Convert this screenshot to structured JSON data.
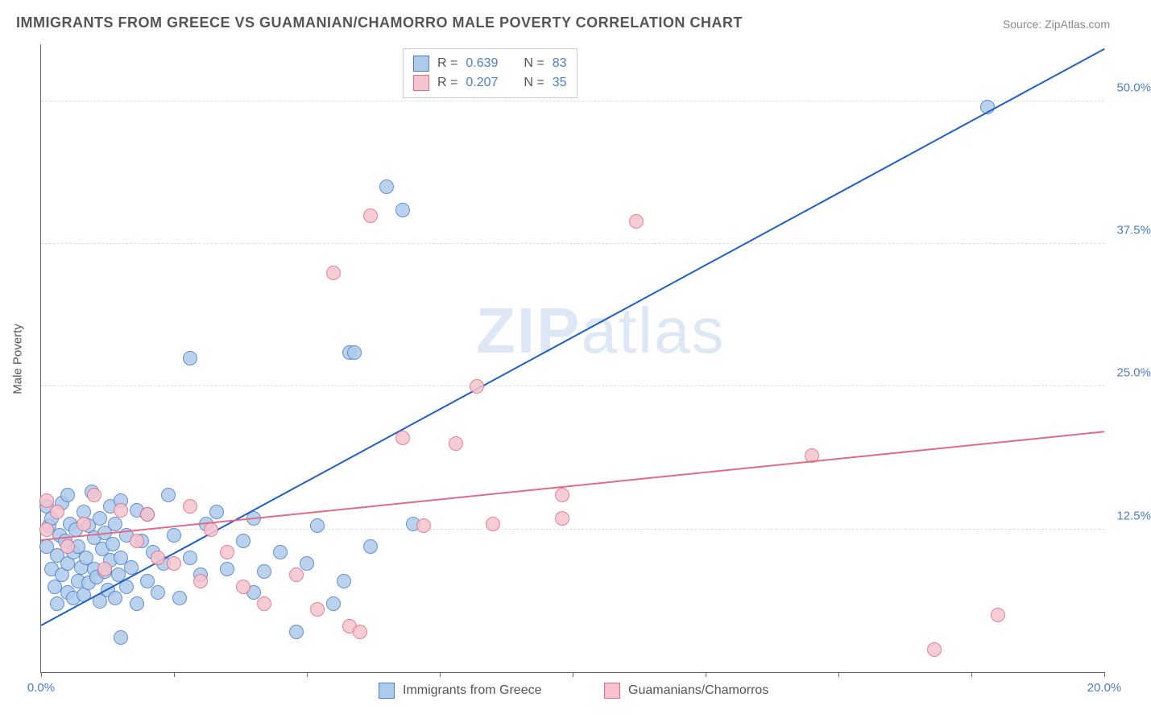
{
  "title": "IMMIGRANTS FROM GREECE VS GUAMANIAN/CHAMORRO MALE POVERTY CORRELATION CHART",
  "source": "Source: ZipAtlas.com",
  "ylabel": "Male Poverty",
  "watermark_a": "ZIP",
  "watermark_b": "atlas",
  "chart": {
    "type": "scatter",
    "xlim": [
      0,
      20
    ],
    "ylim": [
      0,
      55
    ],
    "xtick_positions": [
      0,
      2.5,
      5,
      7.5,
      10,
      12.5,
      15,
      17.5,
      20
    ],
    "xtick_labels": {
      "0": "0.0%",
      "20": "20.0%"
    },
    "ytick_positions": [
      12.5,
      25.0,
      37.5,
      50.0
    ],
    "ytick_labels": [
      "12.5%",
      "25.0%",
      "37.5%",
      "50.0%"
    ],
    "grid_color": "#dddddd",
    "background_color": "#ffffff",
    "axis_color": "#666666",
    "label_color": "#4a7ec9",
    "point_radius": 8,
    "series": [
      {
        "name": "Immigrants from Greece",
        "fill": "#aecbeb",
        "stroke": "#4a7ec9",
        "line_color": "#1f5fc4",
        "R": "0.639",
        "N": "83",
        "reg": {
          "x1": 0,
          "y1": 4.0,
          "x2": 20,
          "y2": 54.5
        },
        "points": [
          [
            0.1,
            11.0
          ],
          [
            0.1,
            14.5
          ],
          [
            0.15,
            12.8
          ],
          [
            0.2,
            9.0
          ],
          [
            0.2,
            13.5
          ],
          [
            0.25,
            7.5
          ],
          [
            0.3,
            10.2
          ],
          [
            0.3,
            6.0
          ],
          [
            0.35,
            12.0
          ],
          [
            0.4,
            8.5
          ],
          [
            0.4,
            14.8
          ],
          [
            0.45,
            11.5
          ],
          [
            0.5,
            9.5
          ],
          [
            0.5,
            7.0
          ],
          [
            0.5,
            15.5
          ],
          [
            0.55,
            13.0
          ],
          [
            0.6,
            10.5
          ],
          [
            0.6,
            6.5
          ],
          [
            0.65,
            12.5
          ],
          [
            0.7,
            8.0
          ],
          [
            0.7,
            11.0
          ],
          [
            0.75,
            9.2
          ],
          [
            0.8,
            14.0
          ],
          [
            0.8,
            6.8
          ],
          [
            0.85,
            10.0
          ],
          [
            0.9,
            7.8
          ],
          [
            0.9,
            12.8
          ],
          [
            0.95,
            15.8
          ],
          [
            1.0,
            9.0
          ],
          [
            1.0,
            11.8
          ],
          [
            1.05,
            8.3
          ],
          [
            1.1,
            13.5
          ],
          [
            1.1,
            6.2
          ],
          [
            1.15,
            10.8
          ],
          [
            1.2,
            8.8
          ],
          [
            1.2,
            12.2
          ],
          [
            1.25,
            7.2
          ],
          [
            1.3,
            14.5
          ],
          [
            1.3,
            9.8
          ],
          [
            1.35,
            11.2
          ],
          [
            1.4,
            6.5
          ],
          [
            1.4,
            13.0
          ],
          [
            1.45,
            8.5
          ],
          [
            1.5,
            15.0
          ],
          [
            1.5,
            10.0
          ],
          [
            1.6,
            7.5
          ],
          [
            1.6,
            12.0
          ],
          [
            1.7,
            9.2
          ],
          [
            1.8,
            6.0
          ],
          [
            1.8,
            14.2
          ],
          [
            1.9,
            11.5
          ],
          [
            2.0,
            8.0
          ],
          [
            2.0,
            13.8
          ],
          [
            2.1,
            10.5
          ],
          [
            2.2,
            7.0
          ],
          [
            2.3,
            9.5
          ],
          [
            2.4,
            15.5
          ],
          [
            2.5,
            12.0
          ],
          [
            2.6,
            6.5
          ],
          [
            2.8,
            10.0
          ],
          [
            3.0,
            8.5
          ],
          [
            3.1,
            13.0
          ],
          [
            3.3,
            14.0
          ],
          [
            3.5,
            9.0
          ],
          [
            3.8,
            11.5
          ],
          [
            4.0,
            7.0
          ],
          [
            4.0,
            13.5
          ],
          [
            4.2,
            8.8
          ],
          [
            4.5,
            10.5
          ],
          [
            4.8,
            3.5
          ],
          [
            5.0,
            9.5
          ],
          [
            5.2,
            12.8
          ],
          [
            5.5,
            6.0
          ],
          [
            5.7,
            8.0
          ],
          [
            5.8,
            28.0
          ],
          [
            6.2,
            11.0
          ],
          [
            6.5,
            42.5
          ],
          [
            6.8,
            40.5
          ],
          [
            7.0,
            13.0
          ],
          [
            2.8,
            27.5
          ],
          [
            5.9,
            28.0
          ],
          [
            17.8,
            49.5
          ],
          [
            1.5,
            3.0
          ]
        ]
      },
      {
        "name": "Guamanians/Chamorros",
        "fill": "#f5c4ce",
        "stroke": "#e16b85",
        "line_color": "#e16b85",
        "R": "0.207",
        "N": "35",
        "reg": {
          "x1": 0,
          "y1": 11.5,
          "x2": 20,
          "y2": 21.0
        },
        "points": [
          [
            0.1,
            15.0
          ],
          [
            0.1,
            12.5
          ],
          [
            0.3,
            14.0
          ],
          [
            0.5,
            11.0
          ],
          [
            0.8,
            13.0
          ],
          [
            1.0,
            15.5
          ],
          [
            1.2,
            9.0
          ],
          [
            1.5,
            14.2
          ],
          [
            1.8,
            11.5
          ],
          [
            2.0,
            13.8
          ],
          [
            2.2,
            10.0
          ],
          [
            2.5,
            9.5
          ],
          [
            2.8,
            14.5
          ],
          [
            3.0,
            8.0
          ],
          [
            3.2,
            12.5
          ],
          [
            3.5,
            10.5
          ],
          [
            3.8,
            7.5
          ],
          [
            4.2,
            6.0
          ],
          [
            4.8,
            8.5
          ],
          [
            5.2,
            5.5
          ],
          [
            5.5,
            35.0
          ],
          [
            5.8,
            4.0
          ],
          [
            6.0,
            3.5
          ],
          [
            6.2,
            40.0
          ],
          [
            6.8,
            20.5
          ],
          [
            7.2,
            12.8
          ],
          [
            7.8,
            20.0
          ],
          [
            8.2,
            25.0
          ],
          [
            8.5,
            13.0
          ],
          [
            9.8,
            13.5
          ],
          [
            9.8,
            15.5
          ],
          [
            11.2,
            39.5
          ],
          [
            14.5,
            19.0
          ],
          [
            16.8,
            2.0
          ],
          [
            18.0,
            5.0
          ]
        ]
      }
    ]
  },
  "legend": {
    "top": {
      "R_label": "R = ",
      "N_label": "N = "
    },
    "bottom": [
      {
        "label": "Immigrants from Greece",
        "fill": "#aecbeb",
        "stroke": "#4a7ec9"
      },
      {
        "label": "Guamanians/Chamorros",
        "fill": "#f5c4ce",
        "stroke": "#e16b85"
      }
    ]
  }
}
